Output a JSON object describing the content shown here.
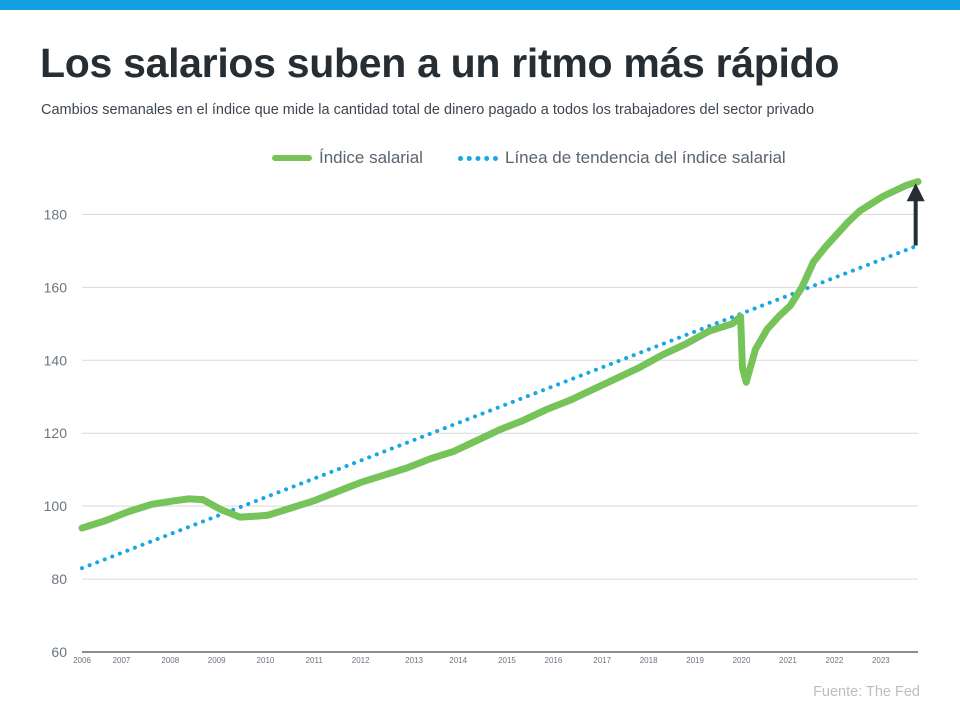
{
  "header": {
    "title": "Los salarios suben a un ritmo más rápido",
    "subtitle": "Cambios semanales en el índice que mide la cantidad total de dinero pagado a todos los trabajadores del sector privado"
  },
  "footer": {
    "source": "Fuente: The Fed"
  },
  "colors": {
    "accent_bar": "#12a0e3",
    "series_wage": "#76c35a",
    "series_trend": "#16a7e6",
    "arrow": "#262d33",
    "grid": "#d9d9d9",
    "axis_text": "#6b7580"
  },
  "chart_data": {
    "type": "line",
    "title": "Los salarios suben a un ritmo más rápido",
    "xlabel": "",
    "ylabel": "",
    "x_range": [
      2006.0,
      2024.0
    ],
    "ylim": [
      60,
      190
    ],
    "yticks": [
      60,
      80,
      100,
      120,
      140,
      160,
      180
    ],
    "grid": true,
    "legend_position": "top-center",
    "x_tick_labels": [
      {
        "label": "2006",
        "x": 2006.0
      },
      {
        "label": "2007",
        "x": 2006.85
      },
      {
        "label": "2008",
        "x": 2007.9
      },
      {
        "label": "2009",
        "x": 2008.9
      },
      {
        "label": "2010",
        "x": 2009.95
      },
      {
        "label": "2011",
        "x": 2011.0
      },
      {
        "label": "2012",
        "x": 2012.0
      },
      {
        "label": "2013",
        "x": 2013.15
      },
      {
        "label": "2014",
        "x": 2014.1
      },
      {
        "label": "2015",
        "x": 2015.15
      },
      {
        "label": "2016",
        "x": 2016.15
      },
      {
        "label": "2017",
        "x": 2017.2
      },
      {
        "label": "2018",
        "x": 2018.2
      },
      {
        "label": "2019",
        "x": 2019.2
      },
      {
        "label": "2020",
        "x": 2020.2
      },
      {
        "label": "2021",
        "x": 2021.2
      },
      {
        "label": "2022",
        "x": 2022.2
      },
      {
        "label": "2023",
        "x": 2023.2
      }
    ],
    "series": [
      {
        "name": "Índice salarial",
        "style": "solid",
        "x": [
          2006.0,
          2006.5,
          2007.0,
          2007.5,
          2008.0,
          2008.3,
          2008.6,
          2009.0,
          2009.4,
          2009.8,
          2010.0,
          2010.5,
          2011.0,
          2011.5,
          2012.0,
          2012.5,
          2013.0,
          2013.5,
          2014.0,
          2014.5,
          2015.0,
          2015.5,
          2016.0,
          2016.5,
          2017.0,
          2017.5,
          2018.0,
          2018.5,
          2019.0,
          2019.5,
          2020.0,
          2020.18,
          2020.22,
          2020.3,
          2020.5,
          2020.75,
          2021.0,
          2021.25,
          2021.5,
          2021.75,
          2022.0,
          2022.25,
          2022.5,
          2022.75,
          2023.0,
          2023.25,
          2023.5,
          2023.75,
          2024.0
        ],
        "values": [
          94,
          96,
          98.5,
          100.5,
          101.5,
          102,
          101.8,
          99,
          97,
          97.3,
          97.5,
          99.5,
          101.5,
          104,
          106.5,
          108.5,
          110.5,
          113,
          115,
          118,
          121,
          123.5,
          126.5,
          129,
          132,
          135,
          138,
          141.5,
          144.5,
          148,
          150,
          152,
          138,
          134,
          143,
          148.5,
          152,
          155,
          160,
          167,
          171,
          174.5,
          178,
          181,
          183,
          185,
          186.5,
          188,
          189
        ]
      },
      {
        "name": "Línea de tendencia del índice salarial",
        "style": "dotted",
        "x": [
          2006.0,
          2024.0
        ],
        "values": [
          83,
          171.5
        ]
      }
    ],
    "annotations": [
      {
        "type": "arrow",
        "x": 2023.95,
        "from_value": 171.5,
        "to_value": 188,
        "direction": "up"
      }
    ]
  }
}
